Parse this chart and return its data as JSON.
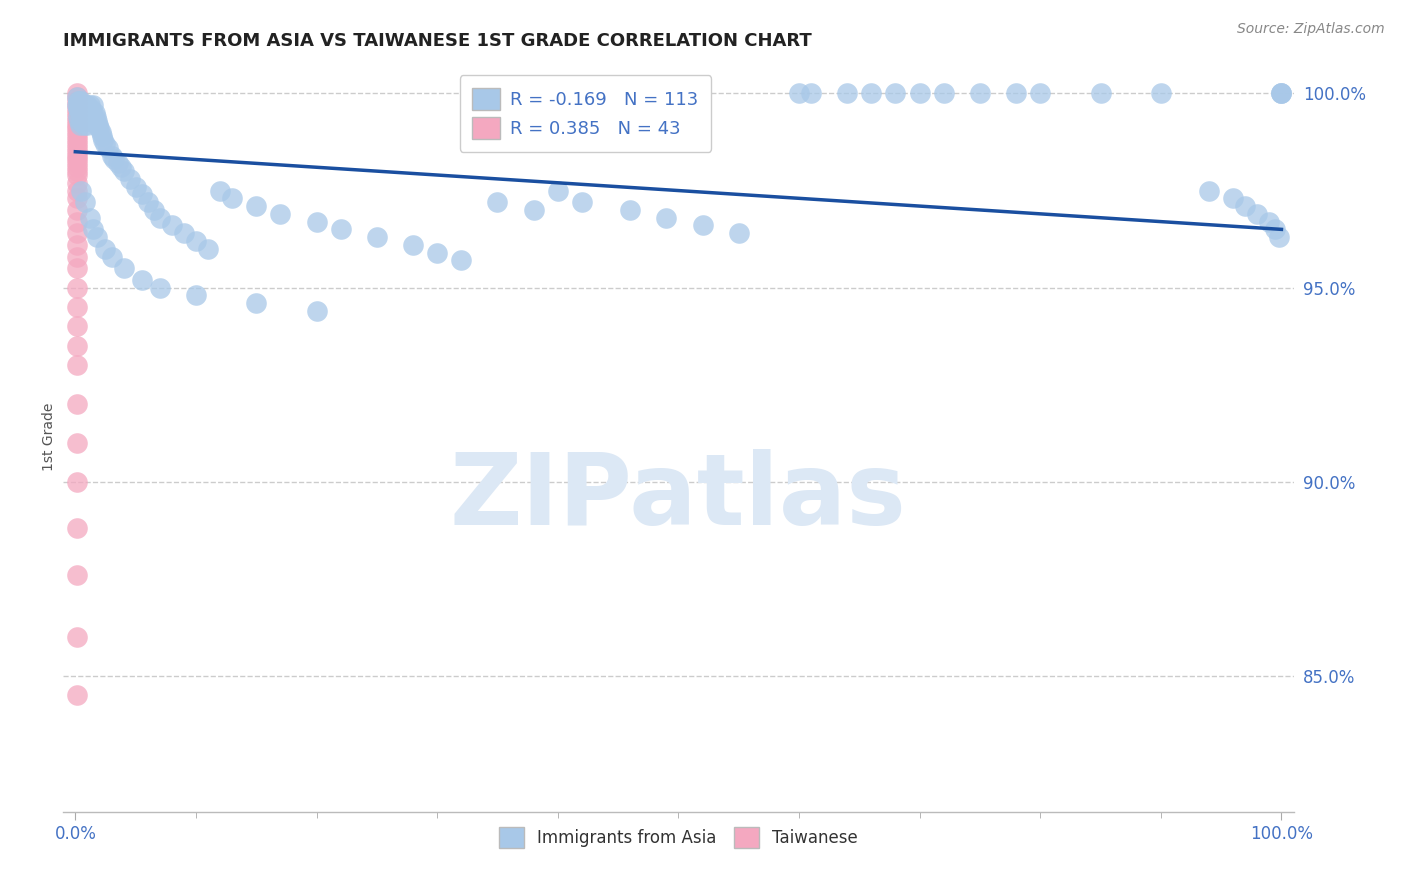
{
  "title": "IMMIGRANTS FROM ASIA VS TAIWANESE 1ST GRADE CORRELATION CHART",
  "source_text": "Source: ZipAtlas.com",
  "ylabel": "1st Grade",
  "xlim": [
    -0.01,
    1.01
  ],
  "ylim": [
    0.815,
    1.008
  ],
  "yticks": [
    0.85,
    0.9,
    0.95,
    1.0
  ],
  "ytick_labels": [
    "85.0%",
    "90.0%",
    "95.0%",
    "100.0%"
  ],
  "xtick_labels": [
    "0.0%",
    "100.0%"
  ],
  "legend_r_blue": "-0.169",
  "legend_n_blue": "113",
  "legend_r_pink": "0.385",
  "legend_n_pink": "43",
  "blue_color": "#a8c8e8",
  "pink_color": "#f4a8c0",
  "trend_color": "#1a4fa0",
  "watermark": "ZIPatlas",
  "trend_x_start": 0.0,
  "trend_x_end": 1.0,
  "trend_y_start": 0.985,
  "trend_y_end": 0.965,
  "blue_x": [
    0.001,
    0.001,
    0.002,
    0.002,
    0.002,
    0.003,
    0.003,
    0.003,
    0.004,
    0.004,
    0.004,
    0.005,
    0.005,
    0.005,
    0.006,
    0.006,
    0.007,
    0.007,
    0.007,
    0.008,
    0.008,
    0.009,
    0.009,
    0.01,
    0.01,
    0.01,
    0.011,
    0.011,
    0.012,
    0.012,
    0.013,
    0.013,
    0.014,
    0.015,
    0.015,
    0.016,
    0.017,
    0.018,
    0.019,
    0.02,
    0.021,
    0.022,
    0.023,
    0.025,
    0.027,
    0.03,
    0.032,
    0.035,
    0.038,
    0.04,
    0.045,
    0.05,
    0.055,
    0.06,
    0.065,
    0.07,
    0.08,
    0.09,
    0.1,
    0.11,
    0.12,
    0.13,
    0.15,
    0.17,
    0.2,
    0.22,
    0.25,
    0.28,
    0.3,
    0.32,
    0.35,
    0.38,
    0.4,
    0.42,
    0.46,
    0.49,
    0.52,
    0.55,
    0.6,
    0.61,
    0.64,
    0.66,
    0.68,
    0.7,
    0.72,
    0.75,
    0.78,
    0.8,
    0.85,
    0.9,
    0.94,
    0.96,
    0.97,
    0.98,
    0.99,
    0.995,
    0.998,
    1.0,
    1.0,
    1.0,
    0.005,
    0.008,
    0.012,
    0.015,
    0.018,
    0.025,
    0.03,
    0.04,
    0.055,
    0.07,
    0.1,
    0.15,
    0.2
  ],
  "blue_y": [
    0.999,
    0.997,
    0.998,
    0.996,
    0.994,
    0.998,
    0.996,
    0.993,
    0.997,
    0.995,
    0.992,
    0.998,
    0.996,
    0.993,
    0.997,
    0.994,
    0.997,
    0.995,
    0.992,
    0.996,
    0.994,
    0.997,
    0.994,
    0.997,
    0.995,
    0.992,
    0.996,
    0.993,
    0.997,
    0.994,
    0.996,
    0.993,
    0.995,
    0.997,
    0.994,
    0.995,
    0.994,
    0.993,
    0.992,
    0.991,
    0.99,
    0.989,
    0.988,
    0.987,
    0.986,
    0.984,
    0.983,
    0.982,
    0.981,
    0.98,
    0.978,
    0.976,
    0.974,
    0.972,
    0.97,
    0.968,
    0.966,
    0.964,
    0.962,
    0.96,
    0.975,
    0.973,
    0.971,
    0.969,
    0.967,
    0.965,
    0.963,
    0.961,
    0.959,
    0.957,
    0.972,
    0.97,
    0.975,
    0.972,
    0.97,
    0.968,
    0.966,
    0.964,
    1.0,
    1.0,
    1.0,
    1.0,
    1.0,
    1.0,
    1.0,
    1.0,
    1.0,
    1.0,
    1.0,
    1.0,
    0.975,
    0.973,
    0.971,
    0.969,
    0.967,
    0.965,
    0.963,
    1.0,
    1.0,
    1.0,
    0.975,
    0.972,
    0.968,
    0.965,
    0.963,
    0.96,
    0.958,
    0.955,
    0.952,
    0.95,
    0.948,
    0.946,
    0.944
  ],
  "pink_x": [
    0.001,
    0.001,
    0.001,
    0.001,
    0.001,
    0.001,
    0.001,
    0.001,
    0.001,
    0.001,
    0.001,
    0.001,
    0.001,
    0.001,
    0.001,
    0.001,
    0.001,
    0.001,
    0.001,
    0.001,
    0.001,
    0.001,
    0.001,
    0.001,
    0.001,
    0.001,
    0.001,
    0.001,
    0.001,
    0.001,
    0.001,
    0.001,
    0.001,
    0.001,
    0.001,
    0.001,
    0.001,
    0.001,
    0.001,
    0.001,
    0.001,
    0.001,
    0.001
  ],
  "pink_y": [
    1.0,
    0.999,
    0.998,
    0.997,
    0.996,
    0.995,
    0.994,
    0.993,
    0.992,
    0.991,
    0.99,
    0.989,
    0.988,
    0.987,
    0.986,
    0.985,
    0.984,
    0.983,
    0.982,
    0.981,
    0.98,
    0.979,
    0.977,
    0.975,
    0.973,
    0.97,
    0.967,
    0.964,
    0.961,
    0.958,
    0.955,
    0.95,
    0.945,
    0.94,
    0.935,
    0.93,
    0.92,
    0.91,
    0.9,
    0.888,
    0.876,
    0.86,
    0.845
  ]
}
